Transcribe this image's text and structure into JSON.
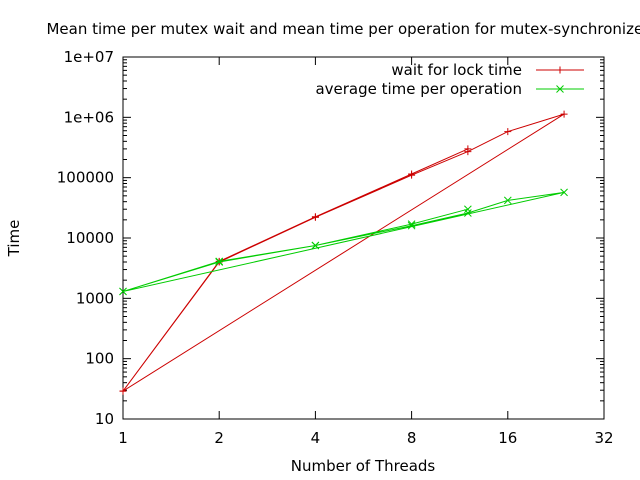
{
  "chart_data": {
    "type": "line",
    "title": "Mean time per mutex wait and mean time per operation for mutex-synchronized list",
    "xlabel": "Number of Threads",
    "ylabel": "Time",
    "xscale": "log2",
    "yscale": "log10",
    "xlim": [
      1,
      32
    ],
    "ylim": [
      10,
      10000000
    ],
    "x_ticks": [
      1,
      2,
      4,
      8,
      16,
      32
    ],
    "x_tick_labels": [
      "1",
      "2",
      "4",
      "8",
      "16",
      "32"
    ],
    "y_ticks": [
      10,
      100,
      1000,
      10000,
      100000,
      1000000,
      10000000
    ],
    "y_tick_labels": [
      "10",
      "100",
      "1000",
      "10000",
      "100000",
      "1e+06",
      "1e+07"
    ],
    "grid": false,
    "legend_position": "top-right",
    "series": [
      {
        "name": "wait for lock time",
        "color": "#cc0000",
        "marker": "plus",
        "x": [
          1,
          2,
          4,
          8,
          12,
          16,
          24,
          1,
          2,
          4,
          8,
          12
        ],
        "y": [
          29,
          4000,
          22000,
          110000,
          270000,
          580000,
          1130000,
          29,
          4100,
          22500,
          115000,
          300000
        ]
      },
      {
        "name": "average time per operation",
        "color": "#00cc00",
        "marker": "cross",
        "x": [
          1,
          2,
          4,
          8,
          12,
          16,
          24,
          1,
          2,
          4,
          8,
          12
        ],
        "y": [
          1300,
          4000,
          7500,
          16000,
          26000,
          42000,
          57000,
          1300,
          4100,
          7500,
          17000,
          30000
        ]
      }
    ]
  }
}
